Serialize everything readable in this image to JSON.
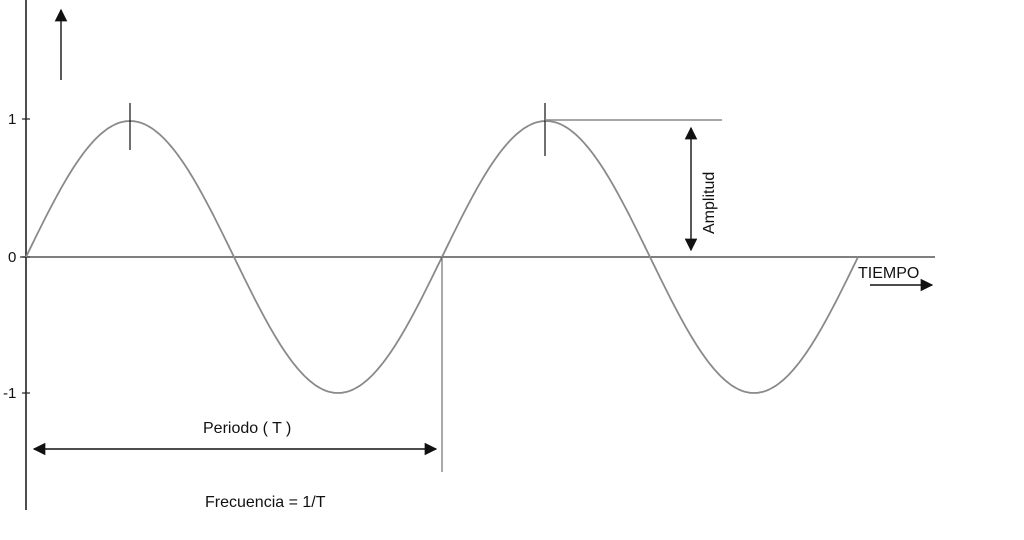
{
  "axes": {
    "y_ticks": [
      "1",
      "0",
      "-1"
    ],
    "x_label": "TIEMPO"
  },
  "annotations": {
    "amplitude": "Amplitud",
    "period": "Periodo ( T )",
    "frequency": "Frecuencia = 1/T"
  },
  "colors": {
    "curve": "#8a8a8a",
    "axis": "#222222"
  }
}
